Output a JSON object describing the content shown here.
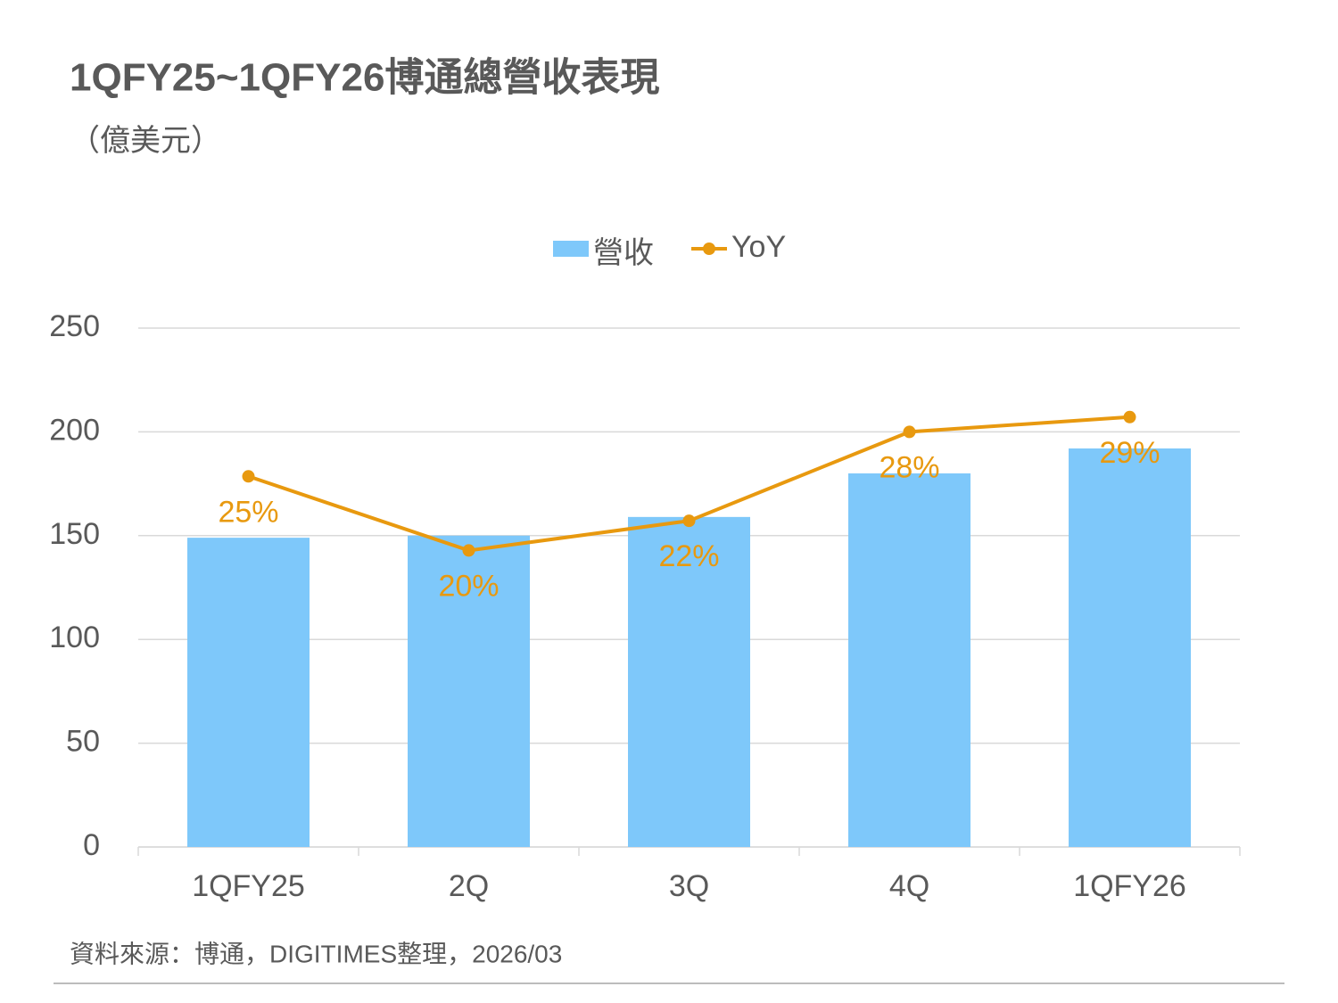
{
  "chart_data": {
    "type": "bar-line",
    "title": "1QFY25~1QFY26博通總營收表現",
    "subtitle": "（億美元）",
    "source": "資料來源：博通，DIGITIMES整理，2026/03",
    "categories": [
      "1QFY25",
      "2Q",
      "3Q",
      "4Q",
      "1QFY26"
    ],
    "series": [
      {
        "name": "營收",
        "type": "bar",
        "color": "#7ec8fa",
        "values": [
          149,
          150,
          159,
          180,
          192
        ]
      },
      {
        "name": "YoY",
        "type": "line",
        "axis": "y2",
        "color": "#e8990f",
        "values": [
          25,
          20,
          22,
          28,
          29
        ],
        "value_labels": [
          "25%",
          "20%",
          "22%",
          "28%",
          "29%"
        ]
      }
    ],
    "ylim": [
      0,
      250
    ],
    "yticks": [
      0,
      50,
      100,
      150,
      200,
      250
    ],
    "y2lim": [
      0,
      35
    ],
    "grid": true,
    "legend": "top"
  }
}
